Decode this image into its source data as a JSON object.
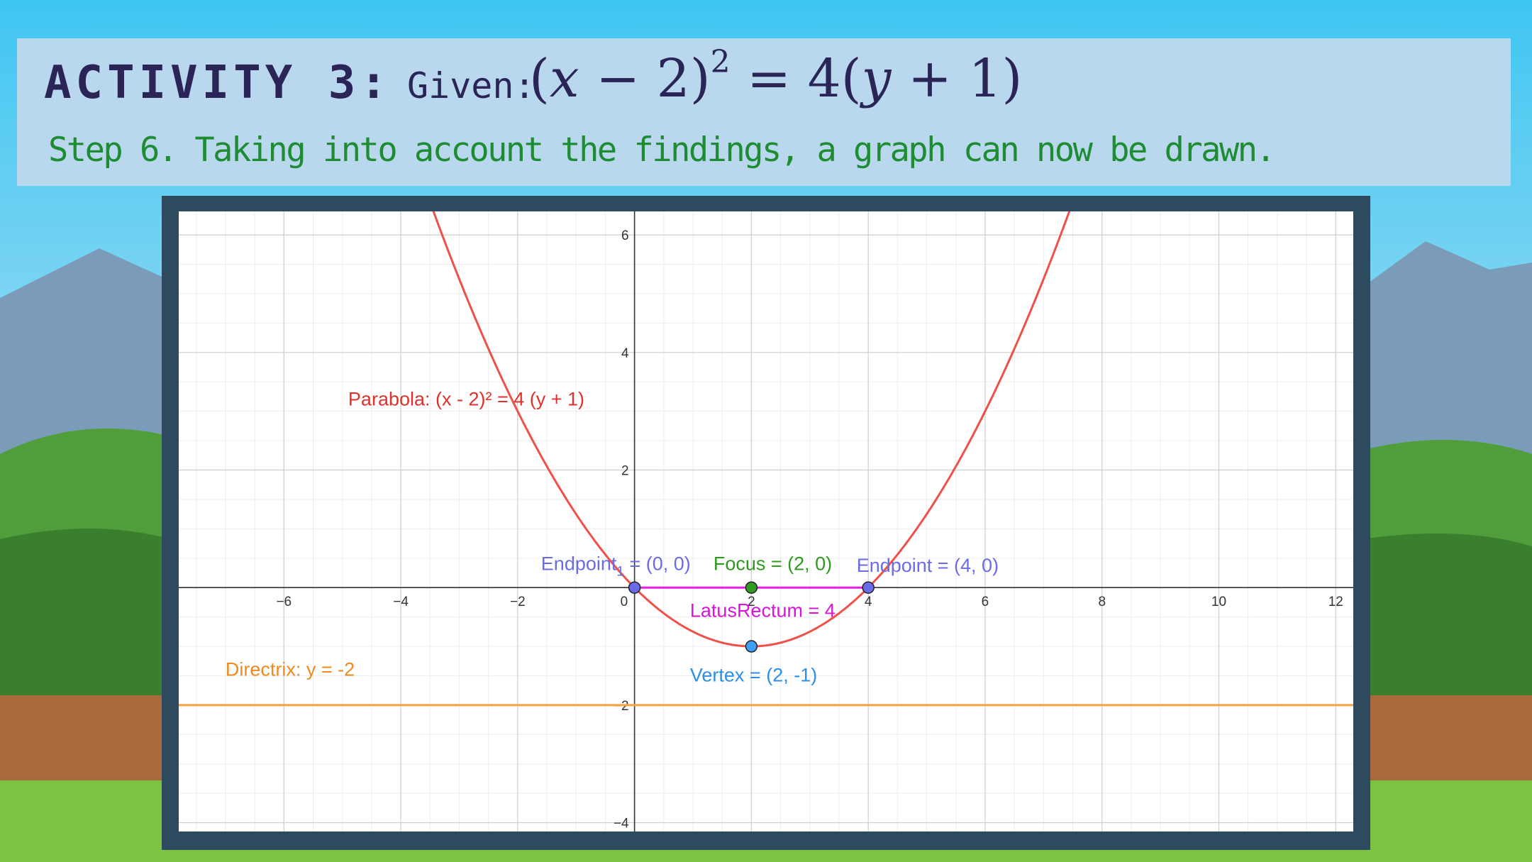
{
  "header": {
    "activity_title": "ACTIVITY 3:",
    "given_label": "Given:",
    "given_equation": {
      "left_open": "(",
      "var_x": "x",
      "minus_term": " − 2)",
      "exponent": "2",
      "equals_term": " = 4(",
      "var_y": "y",
      "plus_term": " + 1)"
    },
    "step_text": "Step 6. Taking into account the findings, a graph can now be drawn."
  },
  "colors": {
    "header_panel": "#b9d8ee",
    "title_text": "#2a2457",
    "step_text": "#1e8c33",
    "frame": "#2e4a5e",
    "parabola": "#f0504a",
    "directrix": "#f4a340",
    "latus_rectum": "#e81ee8",
    "endpoint": "#6b6be8",
    "focus": "#2e9a1e",
    "vertex": "#3d9ef5"
  },
  "chart_data": {
    "type": "line",
    "xlim": [
      -7.8,
      12.3
    ],
    "ylim": [
      -4.15,
      6.4
    ],
    "grid": true,
    "x_ticks": [
      -6,
      -4,
      -2,
      0,
      2,
      4,
      6,
      8,
      10,
      12
    ],
    "y_ticks": [
      -4,
      -2,
      2,
      4,
      6
    ],
    "x_tick_labels": [
      "−6",
      "−4",
      "−2",
      "0",
      "2",
      "4",
      "6",
      "8",
      "10",
      "12"
    ],
    "y_tick_labels": [
      "−4",
      "−2",
      "2",
      "4",
      "6"
    ],
    "parabola": {
      "h": 2,
      "k": -1,
      "p": 1
    },
    "directrix": {
      "y": -2
    },
    "latus_rectum": {
      "from": [
        0,
        0
      ],
      "to": [
        4,
        0
      ]
    },
    "points": [
      {
        "name": "endpoint-1",
        "x": 0,
        "y": 0,
        "color": "#6b6be8"
      },
      {
        "name": "focus",
        "x": 2,
        "y": 0,
        "color": "#2e9a1e"
      },
      {
        "name": "endpoint-2",
        "x": 4,
        "y": 0,
        "color": "#6b6be8"
      },
      {
        "name": "vertex",
        "x": 2,
        "y": -1,
        "color": "#3d9ef5"
      }
    ],
    "labels": {
      "parabola": "Parabola: (x - 2)² = 4 (y + 1)",
      "directrix": "Directrix: y = -2",
      "endpoint1_main": "Endpoint",
      "endpoint1_sub": "1",
      "endpoint1_value": " = (0, 0)",
      "focus": "Focus = (2, 0)",
      "endpoint2": "Endpoint = (4, 0)",
      "latus_rectum": "LatusRectum = 4",
      "vertex": "Vertex = (2, -1)"
    }
  }
}
